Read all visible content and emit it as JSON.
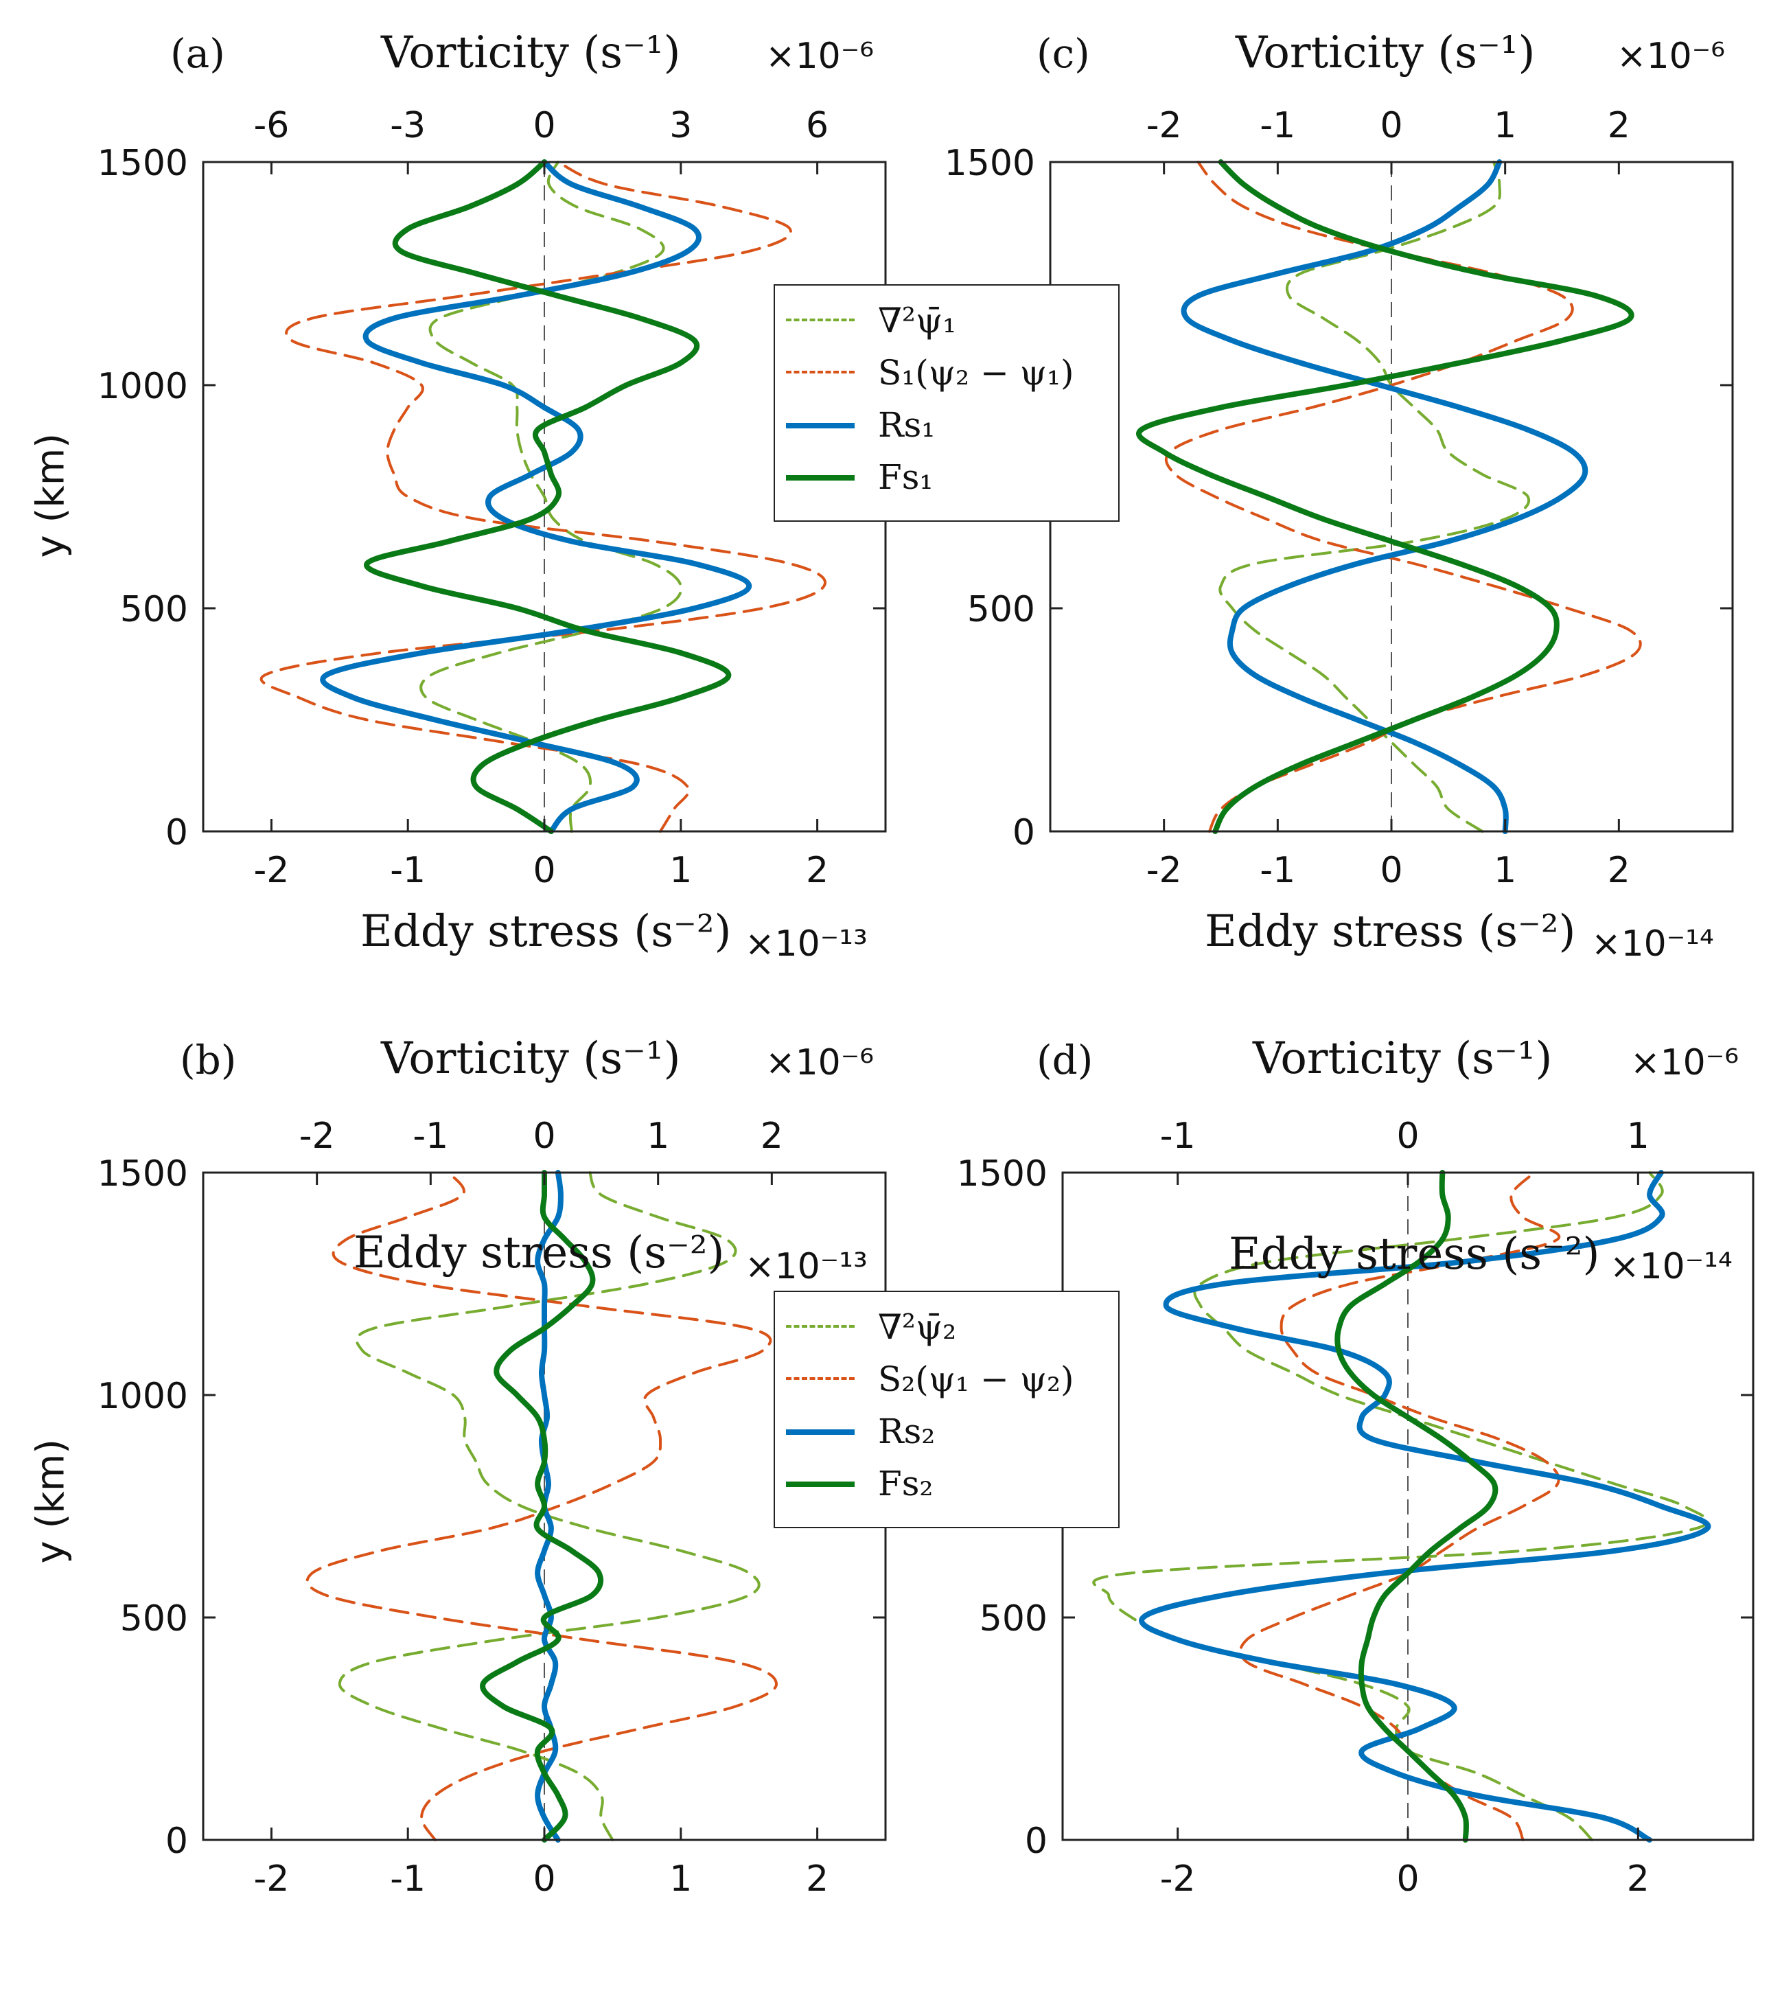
{
  "figure": {
    "panels": [
      {
        "label": "(a)",
        "top_axis_label": "Vorticity (s⁻¹)",
        "top_axis_exponent": "×10⁻⁶",
        "bottom_axis_label": "Eddy stress (s⁻²)",
        "bottom_axis_exponent": "×10⁻¹³",
        "y_axis_label": "y (km)",
        "legend": [
          "∇²ψ̄₁",
          "S₁(ψ₂ − ψ₁)",
          "Rs₁",
          "Fs₁"
        ]
      },
      {
        "label": "(c)",
        "top_axis_label": "Vorticity (s⁻¹)",
        "top_axis_exponent": "×10⁻⁶",
        "bottom_axis_label": "Eddy stress (s⁻²)",
        "bottom_axis_exponent": "×10⁻¹⁴",
        "y_axis_label": ""
      },
      {
        "label": "(b)",
        "top_axis_label": "Vorticity (s⁻¹)",
        "top_axis_exponent": "×10⁻⁶",
        "bottom_axis_label": "Eddy stress (s⁻²)",
        "bottom_axis_exponent": "×10⁻¹³",
        "y_axis_label": "y (km)",
        "legend": [
          "∇²ψ̄₂",
          "S₂(ψ₁ − ψ₂)",
          "Rs₂",
          "Fs₂"
        ]
      },
      {
        "label": "(d)",
        "top_axis_label": "Vorticity (s⁻¹)",
        "top_axis_exponent": "×10⁻⁶",
        "bottom_axis_label": "Eddy stress (s⁻²)",
        "bottom_axis_exponent": "×10⁻¹⁴",
        "y_axis_label": ""
      }
    ],
    "colors": {
      "vorticity": "#77ac30",
      "stretching": "#d95319",
      "rs": "#0072bd",
      "fs": "#0a7a16",
      "zero_line": "#555555",
      "axes": "#222222"
    }
  },
  "chart_data": [
    {
      "id": "a",
      "type": "line",
      "title": "(a)",
      "ylabel": "y (km)",
      "ylim": [
        0,
        1500
      ],
      "yticks": [
        0,
        500,
        1000,
        1500
      ],
      "x_bottom": {
        "label": "Eddy stress (s⁻²)",
        "scale": "×10⁻¹³",
        "lim": [
          -2.5,
          2.5
        ],
        "ticks": [
          -2,
          -1,
          0,
          1,
          2
        ]
      },
      "x_top": {
        "label": "Vorticity (s⁻¹)",
        "scale": "×10⁻⁶",
        "lim": [
          -7.5,
          7.5
        ],
        "ticks": [
          -6,
          -3,
          0,
          3,
          6
        ],
        "tick_labels": [
          "-6",
          "-3",
          "0",
          "3",
          "6"
        ]
      },
      "y": [
        0,
        50,
        100,
        150,
        200,
        250,
        300,
        350,
        400,
        450,
        500,
        550,
        600,
        650,
        700,
        750,
        800,
        850,
        900,
        950,
        1000,
        1050,
        1100,
        1150,
        1200,
        1250,
        1300,
        1350,
        1400,
        1450,
        1500
      ],
      "series": [
        {
          "name": "∇²ψ̄₁",
          "key": "vorticity",
          "axis": "top",
          "values": [
            0.6,
            0.6,
            1.0,
            0.8,
            -0.2,
            -1.5,
            -2.6,
            -2.5,
            -1.0,
            1.0,
            2.6,
            3.0,
            2.4,
            0.9,
            0.2,
            0.0,
            -0.3,
            -0.5,
            -0.6,
            -0.6,
            -0.7,
            -1.6,
            -2.4,
            -2.3,
            -0.5,
            1.5,
            2.6,
            2.1,
            0.7,
            0.1,
            0.3
          ]
        },
        {
          "name": "S₁(ψ₂ − ψ₁)",
          "key": "stretching",
          "axis": "bottom",
          "values": [
            0.85,
            0.95,
            1.05,
            0.7,
            -0.3,
            -1.3,
            -1.8,
            -2.05,
            -1.2,
            0.4,
            1.6,
            2.05,
            1.8,
            0.8,
            -0.5,
            -1.0,
            -1.1,
            -1.15,
            -1.1,
            -1.0,
            -0.9,
            -1.25,
            -1.85,
            -1.7,
            -0.6,
            0.5,
            1.5,
            1.8,
            1.3,
            0.45,
            0.1
          ]
        },
        {
          "name": "Rs₁",
          "key": "rs",
          "axis": "bottom",
          "values": [
            0.05,
            0.2,
            0.65,
            0.55,
            -0.1,
            -0.8,
            -1.4,
            -1.6,
            -0.9,
            0.2,
            1.1,
            1.5,
            1.1,
            0.2,
            -0.3,
            -0.4,
            -0.1,
            0.2,
            0.25,
            0.0,
            -0.3,
            -0.9,
            -1.3,
            -1.1,
            -0.2,
            0.6,
            1.05,
            1.1,
            0.7,
            0.2,
            0.0
          ]
        },
        {
          "name": "Fs₁",
          "key": "fs",
          "axis": "bottom",
          "values": [
            0.05,
            -0.2,
            -0.5,
            -0.45,
            -0.1,
            0.4,
            1.0,
            1.35,
            1.0,
            0.3,
            -0.2,
            -0.9,
            -1.3,
            -0.7,
            -0.1,
            0.1,
            0.05,
            0.0,
            -0.05,
            0.3,
            0.6,
            1.0,
            1.1,
            0.7,
            0.1,
            -0.5,
            -1.05,
            -1.0,
            -0.55,
            -0.2,
            0.0
          ]
        }
      ]
    },
    {
      "id": "c",
      "type": "line",
      "title": "(c)",
      "ylabel": "",
      "ylim": [
        0,
        1500
      ],
      "yticks": [
        0,
        500,
        1000,
        1500
      ],
      "x_bottom": {
        "label": "Eddy stress (s⁻²)",
        "scale": "×10⁻¹⁴",
        "lim": [
          -3,
          3
        ],
        "ticks": [
          -2,
          -1,
          0,
          1,
          2
        ]
      },
      "x_top": {
        "label": "Vorticity (s⁻¹)",
        "scale": "×10⁻⁶",
        "lim": [
          -3,
          3
        ],
        "ticks": [
          -2,
          -1,
          0,
          1,
          2
        ],
        "tick_labels": [
          "-2",
          "-1",
          "0",
          "1",
          "2"
        ]
      },
      "y": [
        0,
        50,
        100,
        150,
        200,
        250,
        300,
        350,
        400,
        450,
        500,
        550,
        600,
        650,
        700,
        750,
        800,
        850,
        900,
        950,
        1000,
        1050,
        1100,
        1150,
        1200,
        1250,
        1300,
        1350,
        1400,
        1450,
        1500
      ],
      "series": [
        {
          "name": "∇²ψ̄₁",
          "key": "vorticity",
          "axis": "top",
          "values": [
            0.8,
            0.5,
            0.4,
            0.2,
            0.0,
            -0.2,
            -0.4,
            -0.6,
            -0.9,
            -1.2,
            -1.4,
            -1.5,
            -1.2,
            0.2,
            1.0,
            1.2,
            0.8,
            0.5,
            0.4,
            0.2,
            0.0,
            -0.1,
            -0.3,
            -0.6,
            -0.9,
            -0.8,
            -0.1,
            0.5,
            0.9,
            0.95,
            0.9
          ]
        },
        {
          "name": "S₁(ψ₂ − ψ₁)",
          "key": "stretching",
          "axis": "bottom",
          "values": [
            -1.6,
            -1.5,
            -1.2,
            -0.7,
            -0.2,
            0.2,
            0.9,
            1.7,
            2.15,
            2.1,
            1.55,
            0.9,
            0.2,
            -0.6,
            -1.1,
            -1.55,
            -1.9,
            -1.95,
            -1.5,
            -0.7,
            0.0,
            0.6,
            1.1,
            1.55,
            1.5,
            0.9,
            0.0,
            -0.8,
            -1.3,
            -1.55,
            -1.7
          ]
        },
        {
          "name": "Rs₁",
          "key": "rs",
          "axis": "bottom",
          "values": [
            1.0,
            1.0,
            0.9,
            0.6,
            0.2,
            -0.3,
            -0.8,
            -1.2,
            -1.4,
            -1.4,
            -1.3,
            -0.9,
            -0.3,
            0.5,
            1.1,
            1.5,
            1.7,
            1.6,
            1.2,
            0.6,
            -0.1,
            -0.8,
            -1.4,
            -1.8,
            -1.7,
            -1.0,
            -0.2,
            0.3,
            0.6,
            0.85,
            0.95
          ]
        },
        {
          "name": "Fs₁",
          "key": "fs",
          "axis": "bottom",
          "values": [
            -1.55,
            -1.45,
            -1.2,
            -0.8,
            -0.3,
            0.2,
            0.7,
            1.1,
            1.35,
            1.45,
            1.4,
            1.1,
            0.6,
            0.0,
            -0.6,
            -1.1,
            -1.6,
            -2.0,
            -2.2,
            -1.5,
            -0.4,
            0.6,
            1.5,
            2.1,
            1.8,
            0.8,
            0.0,
            -0.6,
            -1.0,
            -1.3,
            -1.5
          ]
        }
      ]
    },
    {
      "id": "b",
      "type": "line",
      "title": "(b)",
      "ylabel": "y (km)",
      "ylim": [
        0,
        1500
      ],
      "yticks": [
        0,
        500,
        1000,
        1500
      ],
      "x_bottom": {
        "label": "Eddy stress (s⁻²)",
        "scale": "×10⁻¹³",
        "lim": [
          -2.5,
          2.5
        ],
        "ticks": [
          -2,
          -1,
          0,
          1,
          2
        ]
      },
      "x_top": {
        "label": "Vorticity (s⁻¹)",
        "scale": "×10⁻⁶",
        "lim": [
          -3,
          3
        ],
        "ticks": [
          -2,
          -1,
          0,
          1,
          2
        ],
        "tick_labels": [
          "-2",
          "-1",
          "0",
          "1",
          "2"
        ]
      },
      "y": [
        0,
        50,
        100,
        150,
        200,
        250,
        300,
        350,
        400,
        450,
        500,
        550,
        600,
        650,
        700,
        750,
        800,
        850,
        900,
        950,
        1000,
        1050,
        1100,
        1150,
        1200,
        1250,
        1300,
        1350,
        1400,
        1450,
        1500
      ],
      "series": [
        {
          "name": "∇²ψ̄₂",
          "key": "vorticity",
          "axis": "top",
          "values": [
            0.6,
            0.5,
            0.5,
            0.3,
            -0.2,
            -0.9,
            -1.5,
            -1.8,
            -1.5,
            -0.4,
            1.0,
            1.8,
            1.8,
            1.2,
            0.4,
            -0.2,
            -0.5,
            -0.6,
            -0.7,
            -0.7,
            -0.8,
            -1.2,
            -1.6,
            -1.5,
            -0.3,
            0.9,
            1.6,
            1.6,
            1.0,
            0.5,
            0.4
          ]
        },
        {
          "name": "S₂(ψ₁ − ψ₂)",
          "key": "stretching",
          "axis": "bottom",
          "values": [
            -0.8,
            -0.9,
            -0.8,
            -0.5,
            0.0,
            0.7,
            1.4,
            1.7,
            1.4,
            0.3,
            -0.8,
            -1.6,
            -1.7,
            -1.2,
            -0.4,
            0.1,
            0.5,
            0.8,
            0.85,
            0.8,
            0.75,
            1.1,
            1.6,
            1.5,
            0.3,
            -0.9,
            -1.5,
            -1.45,
            -1.0,
            -0.6,
            -0.7
          ]
        },
        {
          "name": "Rs₂",
          "key": "rs",
          "axis": "bottom",
          "values": [
            0.1,
            0.0,
            -0.05,
            0.0,
            0.08,
            0.05,
            0.0,
            0.05,
            0.08,
            0.0,
            0.05,
            0.0,
            -0.05,
            0.0,
            0.05,
            0.0,
            0.03,
            0.0,
            -0.02,
            0.02,
            0.0,
            -0.02,
            0.0,
            0.0,
            0.0,
            0.0,
            -0.05,
            0.0,
            0.1,
            0.12,
            0.1
          ]
        },
        {
          "name": "Fs₂",
          "key": "fs",
          "axis": "bottom",
          "values": [
            0.0,
            0.15,
            0.1,
            0.0,
            -0.05,
            0.05,
            -0.3,
            -0.45,
            -0.2,
            0.1,
            0.0,
            0.35,
            0.4,
            0.2,
            -0.05,
            0.0,
            -0.05,
            0.0,
            0.0,
            -0.05,
            -0.2,
            -0.35,
            -0.25,
            0.0,
            0.2,
            0.35,
            0.3,
            0.15,
            0.0,
            0.0,
            0.0
          ]
        }
      ]
    },
    {
      "id": "d",
      "type": "line",
      "title": "(d)",
      "ylabel": "",
      "ylim": [
        0,
        1500
      ],
      "yticks": [
        0,
        500,
        1000,
        1500
      ],
      "x_bottom": {
        "label": "Eddy stress (s⁻²)",
        "scale": "×10⁻¹⁴",
        "lim": [
          -3,
          3
        ],
        "ticks": [
          -2,
          0,
          2
        ]
      },
      "x_top": {
        "label": "Vorticity (s⁻¹)",
        "scale": "×10⁻⁶",
        "lim": [
          -1.5,
          1.5
        ],
        "ticks": [
          -1,
          0,
          1
        ],
        "tick_labels": [
          "-1",
          "0",
          "1"
        ]
      },
      "y": [
        0,
        50,
        100,
        150,
        200,
        250,
        300,
        350,
        400,
        450,
        500,
        550,
        600,
        650,
        700,
        750,
        800,
        850,
        900,
        950,
        1000,
        1050,
        1100,
        1150,
        1200,
        1250,
        1300,
        1350,
        1400,
        1450,
        1500
      ],
      "series": [
        {
          "name": "∇²ψ̄₂",
          "key": "vorticity",
          "axis": "top",
          "values": [
            0.8,
            0.7,
            0.5,
            0.3,
            0.0,
            -0.05,
            0.0,
            -0.2,
            -0.6,
            -1.0,
            -1.2,
            -1.3,
            -1.2,
            0.5,
            1.25,
            1.2,
            0.9,
            0.6,
            0.3,
            0.0,
            -0.3,
            -0.5,
            -0.7,
            -0.8,
            -0.9,
            -0.9,
            -0.6,
            0.2,
            0.9,
            1.1,
            1.05
          ]
        },
        {
          "name": "S₂(ψ₁ − ψ₂)",
          "key": "stretching",
          "axis": "bottom",
          "values": [
            1.0,
            0.9,
            0.5,
            0.2,
            0.0,
            -0.1,
            -0.4,
            -0.9,
            -1.4,
            -1.4,
            -1.0,
            -0.5,
            0.0,
            0.3,
            0.6,
            1.0,
            1.3,
            1.2,
            0.8,
            0.2,
            -0.3,
            -0.8,
            -1.0,
            -1.1,
            -1.0,
            -0.5,
            0.5,
            1.3,
            1.0,
            0.9,
            1.1
          ]
        },
        {
          "name": "Rs₂",
          "key": "rs",
          "axis": "bottom",
          "values": [
            2.1,
            1.7,
            0.6,
            -0.1,
            -0.4,
            0.1,
            0.4,
            -0.1,
            -1.2,
            -2.0,
            -2.3,
            -1.6,
            -0.2,
            1.8,
            2.6,
            2.2,
            1.6,
            0.6,
            -0.3,
            -0.4,
            -0.2,
            -0.2,
            -0.6,
            -1.5,
            -2.1,
            -1.6,
            0.5,
            1.8,
            2.2,
            2.1,
            2.2
          ]
        },
        {
          "name": "Fs₂",
          "key": "fs",
          "axis": "bottom",
          "values": [
            0.5,
            0.5,
            0.4,
            0.2,
            0.0,
            -0.2,
            -0.35,
            -0.4,
            -0.4,
            -0.35,
            -0.3,
            -0.2,
            0.0,
            0.2,
            0.45,
            0.7,
            0.75,
            0.55,
            0.3,
            0.0,
            -0.3,
            -0.5,
            -0.6,
            -0.6,
            -0.5,
            -0.2,
            0.1,
            0.3,
            0.35,
            0.3,
            0.3
          ]
        }
      ]
    }
  ]
}
